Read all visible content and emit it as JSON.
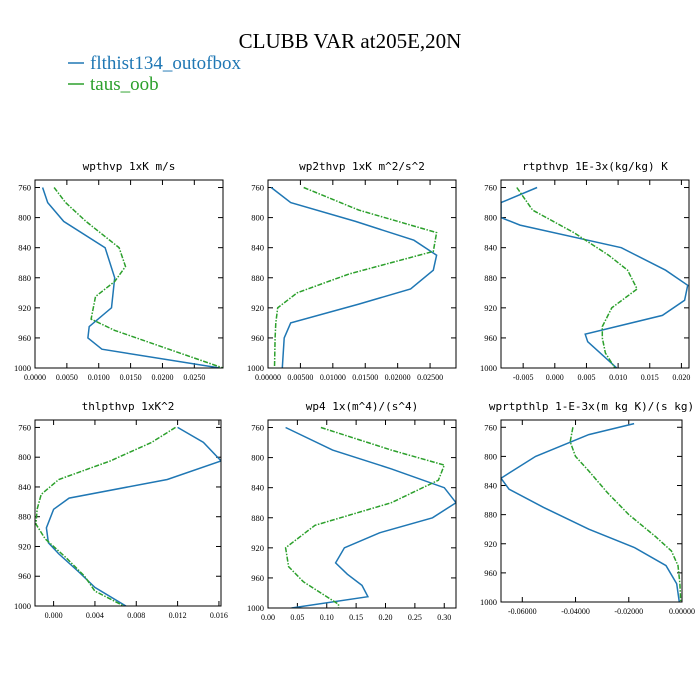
{
  "title": "CLUBB VAR at205E,20N",
  "legend": [
    {
      "name": "flthist134_outofbox",
      "color": "#1f77b4"
    },
    {
      "name": "taus_oob",
      "color": "#2ca02c"
    }
  ],
  "chart_data": [
    {
      "type": "line",
      "title": "wpthvp   1xK m/s",
      "ylim": [
        1000,
        750
      ],
      "yticks": [
        760,
        800,
        840,
        880,
        920,
        960,
        1000
      ],
      "xlim": [
        0,
        0.0295
      ],
      "xticks": [
        0,
        0.005,
        0.01,
        0.015,
        0.02,
        0.025
      ],
      "xticklabels": [
        "0.0000",
        "0.0050",
        "0.0100",
        "0.0150",
        "0.0200",
        "0.0250"
      ],
      "series": [
        {
          "name": "flthist134_outofbox",
          "y": [
            760,
            780,
            805,
            840,
            880,
            920,
            945,
            960,
            975,
            1000
          ],
          "values": [
            0.0012,
            0.002,
            0.0045,
            0.011,
            0.0125,
            0.012,
            0.0085,
            0.0083,
            0.0105,
            0.029
          ]
        },
        {
          "name": "taus_oob",
          "y": [
            760,
            780,
            805,
            840,
            865,
            885,
            905,
            935,
            950,
            975,
            1000
          ],
          "values": [
            0.003,
            0.0048,
            0.008,
            0.0132,
            0.0142,
            0.0125,
            0.0095,
            0.0088,
            0.0125,
            0.021,
            0.0295
          ]
        }
      ]
    },
    {
      "type": "line",
      "title": "wp2thvp   1xK m^2/s^2",
      "ylim": [
        1000,
        750
      ],
      "yticks": [
        760,
        800,
        840,
        880,
        920,
        960,
        1000
      ],
      "xlim": [
        0,
        0.029
      ],
      "xticks": [
        0,
        0.005,
        0.01,
        0.015,
        0.02,
        0.025
      ],
      "xticklabels": [
        "0.00000",
        "0.00500",
        "0.01000",
        "0.01500",
        "0.02000",
        "0.02500"
      ],
      "series": [
        {
          "name": "flthist134_outofbox",
          "y": [
            760,
            780,
            805,
            830,
            850,
            870,
            895,
            915,
            940,
            960,
            1000
          ],
          "values": [
            0.0005,
            0.0035,
            0.0135,
            0.0225,
            0.026,
            0.0255,
            0.022,
            0.014,
            0.0035,
            0.0025,
            0.0022
          ]
        },
        {
          "name": "taus_oob",
          "y": [
            760,
            790,
            820,
            845,
            875,
            900,
            920,
            940,
            960,
            1000
          ],
          "values": [
            0.0055,
            0.014,
            0.026,
            0.0255,
            0.0125,
            0.0045,
            0.0015,
            0.0012,
            0.0011,
            0.001
          ]
        }
      ]
    },
    {
      "type": "line",
      "title": "rtpthvp   1E-3x(kg/kg) K",
      "ylim": [
        1000,
        750
      ],
      "yticks": [
        760,
        800,
        840,
        880,
        920,
        960,
        1000
      ],
      "xlim": [
        -0.0085,
        0.0212
      ],
      "xticks": [
        -0.005,
        0,
        0.005,
        0.01,
        0.015,
        0.02
      ],
      "xticklabels": [
        "-0.005",
        "0.000",
        "0.005",
        "0.010",
        "0.015",
        "0.020"
      ],
      "series": [
        {
          "name": "flthist134_outofbox",
          "y": [
            760,
            780,
            800,
            810,
            840,
            870,
            890,
            910,
            930,
            955,
            965,
            1000
          ],
          "values": [
            -0.0028,
            -0.0085,
            -0.0085,
            -0.0055,
            0.0105,
            0.0175,
            0.021,
            0.0205,
            0.017,
            0.0048,
            0.0052,
            0.0098
          ]
        },
        {
          "name": "taus_oob",
          "y": [
            760,
            790,
            820,
            850,
            870,
            895,
            920,
            945,
            960,
            980,
            1000
          ],
          "values": [
            -0.006,
            -0.0035,
            0.003,
            0.0085,
            0.0115,
            0.013,
            0.009,
            0.0075,
            0.0075,
            0.008,
            0.0095
          ]
        }
      ]
    },
    {
      "type": "line",
      "title": "thlpthvp   1xK^2",
      "ylim": [
        1000,
        750
      ],
      "yticks": [
        760,
        800,
        840,
        880,
        920,
        960,
        1000
      ],
      "xlim": [
        -0.0018,
        0.0162
      ],
      "xticks": [
        0,
        0.004,
        0.008,
        0.012,
        0.016
      ],
      "xticklabels": [
        "0.000",
        "0.004",
        "0.008",
        "0.012",
        "0.016"
      ],
      "series": [
        {
          "name": "flthist134_outofbox",
          "y": [
            760,
            780,
            805,
            830,
            855,
            870,
            895,
            915,
            930,
            955,
            975,
            1000
          ],
          "values": [
            0.012,
            0.0145,
            0.0162,
            0.011,
            0.0015,
            0.0,
            -0.0007,
            -0.0005,
            0.0005,
            0.0025,
            0.004,
            0.007
          ]
        },
        {
          "name": "taus_oob",
          "y": [
            760,
            780,
            805,
            830,
            850,
            870,
            890,
            910,
            935,
            960,
            980,
            1000
          ],
          "values": [
            0.0118,
            0.0095,
            0.0055,
            0.0005,
            -0.0012,
            -0.0016,
            -0.0017,
            -0.0008,
            0.0012,
            0.003,
            0.004,
            0.0068
          ]
        }
      ]
    },
    {
      "type": "line",
      "title": "wp4   1x(m^4)/(s^4)",
      "ylim": [
        1000,
        750
      ],
      "yticks": [
        760,
        800,
        840,
        880,
        920,
        960,
        1000
      ],
      "xlim": [
        0,
        0.32
      ],
      "xticks": [
        0,
        0.05,
        0.1,
        0.15,
        0.2,
        0.25,
        0.3
      ],
      "xticklabels": [
        "0.00",
        "0.05",
        "0.10",
        "0.15",
        "0.20",
        "0.25",
        "0.30"
      ],
      "series": [
        {
          "name": "flthist134_outofbox",
          "y": [
            760,
            790,
            815,
            840,
            860,
            880,
            900,
            920,
            940,
            955,
            970,
            985,
            1000
          ],
          "values": [
            0.03,
            0.11,
            0.21,
            0.3,
            0.32,
            0.28,
            0.19,
            0.13,
            0.115,
            0.135,
            0.16,
            0.17,
            0.04
          ]
        },
        {
          "name": "taus_oob",
          "y": [
            760,
            790,
            810,
            830,
            860,
            890,
            920,
            945,
            965,
            980,
            995,
            1000
          ],
          "values": [
            0.09,
            0.21,
            0.3,
            0.29,
            0.21,
            0.08,
            0.03,
            0.035,
            0.06,
            0.09,
            0.12,
            0.12
          ]
        }
      ]
    },
    {
      "type": "line",
      "title": "wprtpthlp   1-E-3x(m kg K)/(s kg)",
      "ylim": [
        1000,
        750
      ],
      "yticks": [
        760,
        800,
        840,
        880,
        920,
        960,
        1000
      ],
      "xlim": [
        -0.068,
        0.0
      ],
      "xticks": [
        -0.06,
        -0.04,
        -0.02,
        0.0
      ],
      "xticklabels": [
        "-0.06000",
        "-0.04000",
        "-0.02000",
        "0.00000"
      ],
      "series": [
        {
          "name": "flthist134_outofbox",
          "y": [
            755,
            770,
            800,
            830,
            845,
            870,
            900,
            925,
            950,
            975,
            1000
          ],
          "values": [
            -0.018,
            -0.035,
            -0.055,
            -0.068,
            -0.065,
            -0.052,
            -0.035,
            -0.018,
            -0.006,
            -0.002,
            -0.001
          ]
        },
        {
          "name": "taus_oob",
          "y": [
            760,
            780,
            800,
            820,
            850,
            880,
            910,
            930,
            950,
            975,
            1000
          ],
          "values": [
            -0.041,
            -0.042,
            -0.04,
            -0.035,
            -0.028,
            -0.02,
            -0.01,
            -0.004,
            -0.0015,
            -0.0008,
            -0.0005
          ]
        }
      ]
    }
  ]
}
